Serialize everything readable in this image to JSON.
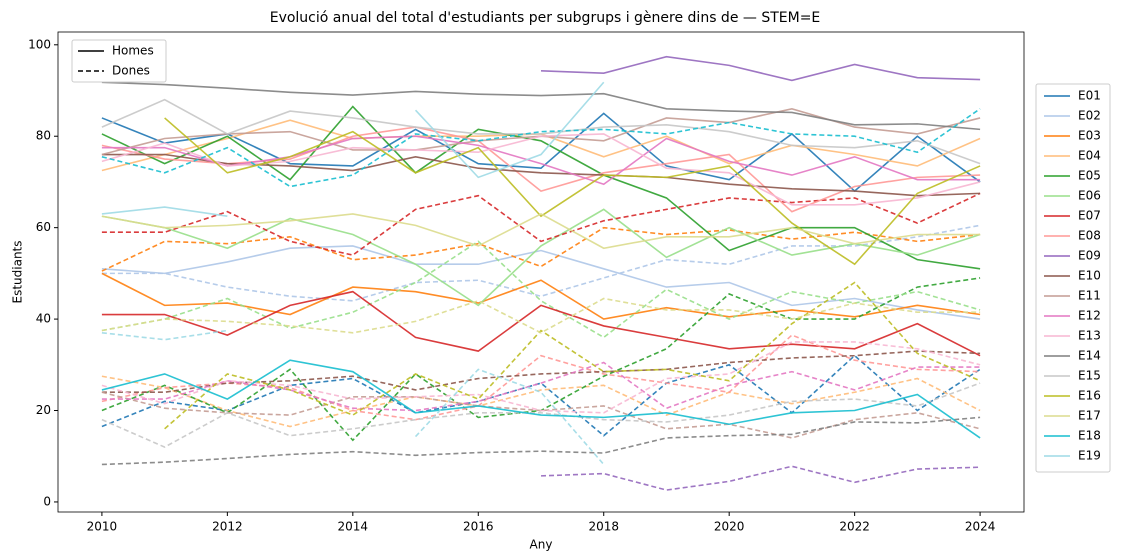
{
  "chart_data": {
    "type": "line",
    "title": "Evolució anual del total d'estudiants per subgrups i gènere dins de — STEM=E",
    "x_label": "Any",
    "y_label": "Estudiants",
    "x": [
      2010,
      2011,
      2012,
      2013,
      2014,
      2015,
      2016,
      2017,
      2018,
      2019,
      2020,
      2021,
      2022,
      2023,
      2024
    ],
    "xlim": [
      2009.3,
      2024.7
    ],
    "ylim": [
      -2.2,
      102.8
    ],
    "xticks": [
      2010,
      2012,
      2014,
      2016,
      2018,
      2020,
      2022,
      2024
    ],
    "yticks": [
      0,
      20,
      40,
      60,
      80,
      100
    ],
    "style_legend": {
      "homes": "Homes",
      "dones": "Dones"
    },
    "series": [
      {
        "name": "E01",
        "color": "#1f77b4",
        "homes": [
          84,
          78.5,
          80.5,
          74,
          73.5,
          81.5,
          74,
          73,
          85,
          73.5,
          70.5,
          80.5,
          68,
          80,
          70
        ],
        "dones": [
          16.5,
          22,
          20,
          25.5,
          27,
          19.5,
          22,
          26,
          14.5,
          26,
          30,
          19.5,
          32,
          20,
          29
        ]
      },
      {
        "name": "E02",
        "color": "#aec7e8",
        "homes": [
          51,
          50,
          52.5,
          55.5,
          56,
          52,
          52,
          55,
          51,
          47,
          48,
          43,
          44.5,
          42,
          40
        ],
        "dones": [
          50,
          50,
          47,
          45,
          44,
          48,
          48.5,
          45,
          49,
          53,
          52,
          56,
          56,
          58,
          60.5
        ]
      },
      {
        "name": "E03",
        "color": "#ff7f0e",
        "homes": [
          50,
          43,
          43.5,
          41,
          47,
          46,
          43.5,
          48.5,
          40,
          42.5,
          40.5,
          42,
          40.5,
          43,
          41
        ],
        "dones": [
          50.5,
          57,
          56.5,
          58,
          53,
          54,
          56.5,
          51.5,
          60,
          58.5,
          59.5,
          57.5,
          59,
          57,
          58.5
        ]
      },
      {
        "name": "E04",
        "color": "#ffbb78",
        "homes": [
          72.5,
          76,
          79.5,
          83.5,
          79.5,
          80,
          80,
          80.5,
          75.5,
          80,
          74,
          78,
          76,
          73.5,
          79.5
        ],
        "dones": [
          27.5,
          25,
          20,
          16.5,
          20,
          23,
          21,
          24.5,
          25.5,
          19,
          24,
          21.5,
          24,
          27,
          20
        ]
      },
      {
        "name": "E05",
        "color": "#2ca02c",
        "homes": [
          80.5,
          74,
          80,
          70.5,
          86.5,
          72,
          81.5,
          79,
          71.5,
          66.5,
          55,
          60,
          60,
          53,
          51
        ],
        "dones": [
          20,
          25.5,
          19.5,
          29,
          13.5,
          28,
          18.5,
          20,
          27.5,
          33.5,
          45.5,
          40,
          40,
          47,
          49
        ]
      },
      {
        "name": "E06",
        "color": "#98df8a",
        "homes": [
          62.5,
          60,
          55.5,
          62,
          58.5,
          52,
          43,
          56,
          64,
          53.5,
          60,
          54,
          56.5,
          54,
          58.5
        ],
        "dones": [
          37.5,
          40,
          44.5,
          38,
          41.5,
          48,
          57,
          44,
          36,
          46.5,
          40,
          46,
          43.5,
          46,
          42
        ]
      },
      {
        "name": "E07",
        "color": "#d62728",
        "homes": [
          41,
          41,
          36.5,
          43,
          46,
          36,
          33,
          43,
          38.5,
          36,
          33.5,
          34.5,
          33.5,
          39,
          32
        ],
        "dones": [
          59,
          59,
          63.5,
          57,
          54,
          64,
          67,
          57,
          61.5,
          64,
          66.5,
          65.5,
          66.5,
          61,
          67.5
        ]
      },
      {
        "name": "E08",
        "color": "#ff9896",
        "homes": [
          78,
          75,
          74,
          75,
          80,
          82,
          79,
          68,
          72,
          74,
          76,
          63.5,
          69,
          71,
          71.5
        ],
        "dones": [
          22,
          25,
          26,
          25,
          20,
          18,
          21,
          32,
          28,
          26,
          24,
          36.5,
          31,
          29,
          28.5
        ]
      },
      {
        "name": "E09",
        "color": "#9467bd",
        "homes": [
          null,
          null,
          null,
          null,
          null,
          null,
          null,
          94.3,
          93.8,
          97.4,
          95.5,
          92.2,
          95.7,
          92.8,
          92.4
        ],
        "dones": [
          null,
          null,
          null,
          null,
          null,
          null,
          null,
          5.7,
          6.2,
          2.6,
          4.5,
          7.8,
          4.3,
          7.2,
          7.6
        ]
      },
      {
        "name": "E10",
        "color": "#8c564b",
        "homes": [
          76,
          76,
          74,
          73.5,
          72.5,
          75.5,
          73,
          72,
          71.5,
          71,
          69.5,
          68.5,
          68,
          67,
          67.5
        ],
        "dones": [
          24,
          24,
          26,
          26.5,
          27.5,
          24.5,
          27,
          28,
          28.5,
          29,
          30.5,
          31.5,
          32,
          33,
          32.5
        ]
      },
      {
        "name": "E11",
        "color": "#c49c94",
        "homes": [
          76,
          79.5,
          80.5,
          81,
          77,
          77,
          79,
          80,
          79,
          84,
          83,
          86,
          82,
          80.5,
          84
        ],
        "dones": [
          24,
          20.5,
          19.5,
          19,
          23,
          23,
          21,
          20,
          21,
          16,
          17,
          14,
          18,
          19.5,
          16
        ]
      },
      {
        "name": "E12",
        "color": "#e377c2",
        "homes": [
          77.5,
          77.5,
          73.5,
          75.5,
          79.5,
          80,
          78,
          74,
          69.5,
          79.5,
          74.5,
          71.5,
          75.5,
          70.5,
          70.5
        ],
        "dones": [
          22.5,
          22.5,
          26.5,
          24.5,
          20.5,
          20,
          22,
          26,
          30.5,
          20.5,
          25.5,
          28.5,
          24.5,
          29.5,
          29.5
        ]
      },
      {
        "name": "E13",
        "color": "#f7b6d2",
        "homes": [
          74.5,
          78.5,
          73.5,
          74.5,
          77.5,
          77,
          76.5,
          80,
          80.5,
          73,
          72,
          65,
          65,
          66.5,
          70
        ],
        "dones": [
          25.5,
          21.5,
          26.5,
          25.5,
          22.5,
          23,
          23.5,
          20,
          19.5,
          27,
          28,
          35,
          35,
          33.5,
          30
        ]
      },
      {
        "name": "E14",
        "color": "#7f7f7f",
        "homes": [
          91.8,
          91.3,
          90.5,
          89.6,
          89,
          89.8,
          89.2,
          88.9,
          89.3,
          86,
          85.5,
          85.2,
          82.5,
          82.7,
          81.5
        ],
        "dones": [
          8.2,
          8.7,
          9.5,
          10.4,
          11,
          10.2,
          10.8,
          11.1,
          10.7,
          14,
          14.5,
          14.8,
          17.5,
          17.3,
          18.5
        ]
      },
      {
        "name": "E15",
        "color": "#c7c7c7",
        "homes": [
          82,
          88,
          80.5,
          85.5,
          84,
          82,
          80.5,
          80.5,
          82,
          82.5,
          81,
          78,
          77.5,
          79,
          74
        ],
        "dones": [
          18,
          12,
          19.5,
          14.5,
          16,
          18,
          19.5,
          19.5,
          18,
          17.5,
          19,
          22,
          22.5,
          21,
          26
        ]
      },
      {
        "name": "E16",
        "color": "#bcbd22",
        "homes": [
          null,
          84,
          72,
          75.5,
          81,
          72,
          77.5,
          62.5,
          71.5,
          71,
          73.5,
          61,
          52,
          67.5,
          73.5
        ],
        "dones": [
          null,
          16,
          28,
          24.5,
          19,
          28,
          22.5,
          37.5,
          28.5,
          29,
          26.5,
          39,
          48,
          32.5,
          26.5
        ]
      },
      {
        "name": "E17",
        "color": "#dbdb8d",
        "homes": [
          62.5,
          60,
          60.5,
          61.5,
          63,
          60.5,
          56,
          63,
          55.5,
          58,
          58,
          60,
          56.5,
          58.5,
          58.5
        ],
        "dones": [
          37.5,
          40,
          39.5,
          38.5,
          37,
          39.5,
          44,
          37,
          44.5,
          42,
          42,
          40,
          43.5,
          41.5,
          41.5
        ]
      },
      {
        "name": "E18",
        "color": "#17becf",
        "homes": [
          24.5,
          28,
          22.5,
          31,
          28.5,
          19.5,
          21,
          19,
          18.5,
          19.5,
          17,
          19.5,
          20,
          23.5,
          14
        ],
        "dones": [
          75.5,
          72,
          77.5,
          69,
          71.5,
          80.5,
          79,
          81,
          81.5,
          80.5,
          83,
          80.5,
          80,
          76.5,
          86
        ]
      },
      {
        "name": "E19",
        "color": "#9edae5",
        "homes": [
          63,
          64.5,
          62.5,
          null,
          null,
          85.7,
          71,
          76,
          91.8,
          null,
          null,
          null,
          null,
          null,
          null
        ],
        "dones": [
          37,
          35.5,
          37.5,
          null,
          null,
          14.3,
          29,
          24,
          8.2,
          null,
          null,
          null,
          null,
          null,
          null
        ]
      }
    ]
  }
}
